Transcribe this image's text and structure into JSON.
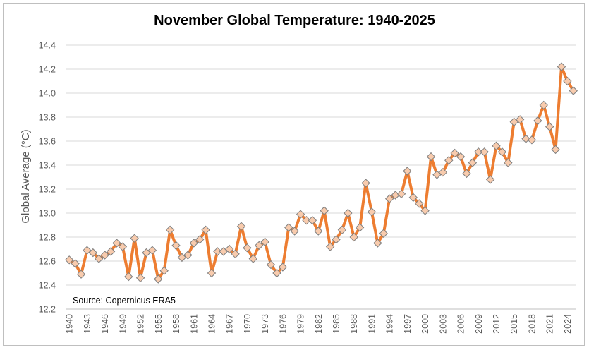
{
  "chart_data": {
    "type": "line",
    "title": "November Global Temperature: 1940-2025",
    "ylabel": "Global Average (°C)",
    "xlabel": "",
    "annotation": "Source: Copernicus ERA5",
    "ylim": [
      12.2,
      14.4
    ],
    "yticks": [
      "12.2",
      "12.4",
      "12.6",
      "12.8",
      "13.0",
      "13.2",
      "13.4",
      "13.6",
      "13.8",
      "14.0",
      "14.2",
      "14.4"
    ],
    "xtick_labels": [
      "1940",
      "1943",
      "1946",
      "1949",
      "1952",
      "1955",
      "1958",
      "1961",
      "1964",
      "1967",
      "1970",
      "1973",
      "1976",
      "1979",
      "1982",
      "1985",
      "1988",
      "1991",
      "1994",
      "1997",
      "2000",
      "2003",
      "2006",
      "2009",
      "2012",
      "2015",
      "2018",
      "2021",
      "2024"
    ],
    "grid": "horizontal",
    "colors": {
      "line": "#ed7d31",
      "marker_fill": "#f8cbad",
      "marker_stroke": "#7f7f7f",
      "grid": "#d9d9d9"
    },
    "series": [
      {
        "x": [
          1940,
          1941,
          1942,
          1943,
          1944,
          1945,
          1946,
          1947,
          1948,
          1949,
          1950,
          1951,
          1952,
          1953,
          1954,
          1955,
          1956,
          1957,
          1958,
          1959,
          1960,
          1961,
          1962,
          1963,
          1964,
          1965,
          1966,
          1967,
          1968,
          1969,
          1970,
          1971,
          1972,
          1973,
          1974,
          1975,
          1976,
          1977,
          1978,
          1979,
          1980,
          1981,
          1982,
          1983,
          1984,
          1985,
          1986,
          1987,
          1988,
          1989,
          1990,
          1991,
          1992,
          1993,
          1994,
          1995,
          1996,
          1997,
          1998,
          1999,
          2000,
          2001,
          2002,
          2003,
          2004,
          2005,
          2006,
          2007,
          2008,
          2009,
          2010,
          2011,
          2012,
          2013,
          2014,
          2015,
          2016,
          2017,
          2018,
          2019,
          2020,
          2021,
          2022,
          2023,
          2024,
          2025
        ],
        "values": [
          12.61,
          12.58,
          12.49,
          12.69,
          12.67,
          12.62,
          12.65,
          12.68,
          12.75,
          12.72,
          12.47,
          12.79,
          12.46,
          12.67,
          12.69,
          12.45,
          12.52,
          12.86,
          12.73,
          12.63,
          12.65,
          12.75,
          12.78,
          12.86,
          12.5,
          12.68,
          12.68,
          12.7,
          12.66,
          12.89,
          12.71,
          12.62,
          12.73,
          12.76,
          12.57,
          12.5,
          12.55,
          12.88,
          12.85,
          12.99,
          12.94,
          12.94,
          12.85,
          13.02,
          12.72,
          12.78,
          12.86,
          13.0,
          12.8,
          12.88,
          13.25,
          13.01,
          12.75,
          12.83,
          13.12,
          13.15,
          13.16,
          13.35,
          13.13,
          13.08,
          13.02,
          13.47,
          13.32,
          13.34,
          13.44,
          13.5,
          13.47,
          13.33,
          13.42,
          13.51,
          13.51,
          13.28,
          13.56,
          13.51,
          13.42,
          13.76,
          13.78,
          13.62,
          13.61,
          13.77,
          13.9,
          13.72,
          13.53,
          14.22,
          14.1,
          14.02
        ]
      }
    ]
  }
}
